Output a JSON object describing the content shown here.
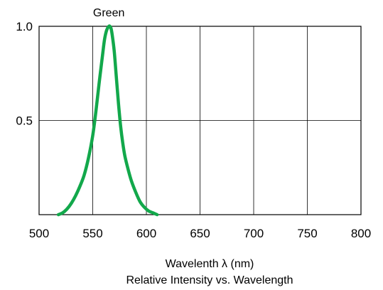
{
  "chart_data": {
    "type": "line",
    "title": "Relative Intensity vs. Wavelength",
    "xlabel": "Wavelenth λ (nm)",
    "ylabel": "",
    "xlim": [
      500,
      800
    ],
    "ylim": [
      0,
      1.0
    ],
    "x_ticks": [
      "500",
      "550",
      "600",
      "650",
      "700",
      "750",
      "800"
    ],
    "y_ticks": [
      "0.5",
      "1.0"
    ],
    "grid": true,
    "series": [
      {
        "name": "Green",
        "color": "#12a84b",
        "x": [
          518,
          522,
          526,
          530,
          534,
          538,
          542,
          546,
          550,
          553,
          556,
          559,
          561,
          563,
          565,
          566,
          567,
          568,
          570,
          572,
          574,
          576,
          578,
          580,
          583,
          586,
          590,
          594,
          598,
          602,
          606,
          610
        ],
        "y": [
          0.0,
          0.01,
          0.03,
          0.06,
          0.1,
          0.15,
          0.21,
          0.3,
          0.42,
          0.55,
          0.7,
          0.84,
          0.93,
          0.98,
          1.0,
          1.0,
          0.99,
          0.96,
          0.87,
          0.73,
          0.59,
          0.47,
          0.38,
          0.31,
          0.24,
          0.18,
          0.12,
          0.07,
          0.04,
          0.02,
          0.01,
          0.0
        ]
      }
    ]
  }
}
